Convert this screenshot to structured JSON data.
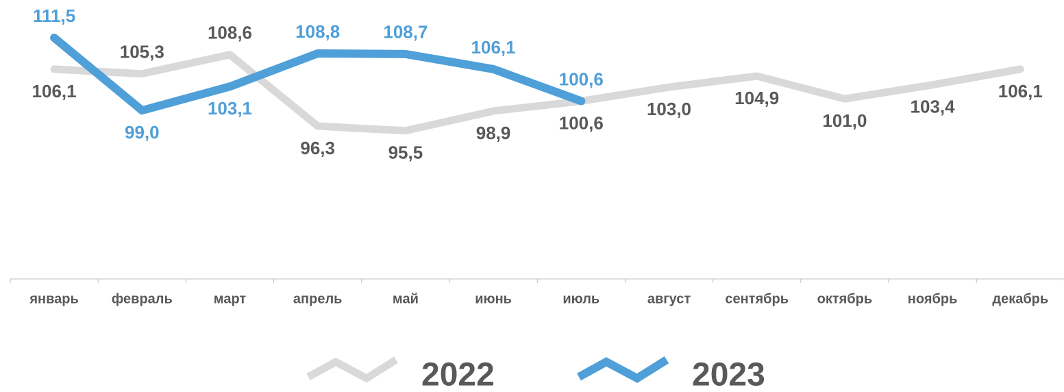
{
  "chart_data": {
    "type": "line",
    "categories": [
      "январь",
      "февраль",
      "март",
      "апрель",
      "май",
      "июнь",
      "июль",
      "август",
      "сентябрь",
      "октябрь",
      "ноябрь",
      "декабрь"
    ],
    "series": [
      {
        "name": "2022",
        "color": "#d9d9d9",
        "label_color": "#595959",
        "values": [
          106.1,
          105.3,
          108.6,
          96.3,
          95.5,
          98.9,
          100.6,
          103.0,
          104.9,
          101.0,
          103.4,
          106.1
        ],
        "value_labels": [
          "106,1",
          "105,3",
          "108,6",
          "96,3",
          "95,5",
          "98,9",
          "100,6",
          "103,0",
          "104,9",
          "101,0",
          "103,4",
          "106,1"
        ]
      },
      {
        "name": "2023",
        "color": "#4f9fd8",
        "label_color": "#4f9fd8",
        "values": [
          111.5,
          99.0,
          103.1,
          108.8,
          108.7,
          106.1,
          100.6,
          null,
          null,
          null,
          null,
          null
        ],
        "value_labels": [
          "111,5",
          "99,0",
          "103,1",
          "108,8",
          "108,7",
          "106,1",
          "100,6",
          null,
          null,
          null,
          null,
          null
        ]
      }
    ],
    "ylim": [
      70,
      118
    ],
    "legend": "bottom"
  }
}
